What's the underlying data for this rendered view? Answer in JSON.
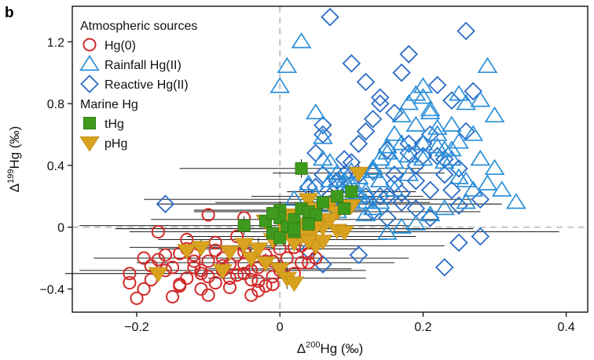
{
  "chart_data": {
    "type": "scatter",
    "panel_label": "b",
    "xlabel": {
      "prefix": "Δ",
      "sup": "200",
      "suffix": "Hg (‰)"
    },
    "ylabel": {
      "prefix": "Δ",
      "sup": "199",
      "suffix": "Hg (‰)"
    },
    "xlim": [
      -0.29,
      0.43
    ],
    "ylim": [
      -0.55,
      1.43
    ],
    "xticks": [
      -0.2,
      0,
      0.2,
      0.4
    ],
    "xtick_labels": [
      "−0.2",
      "0",
      "0.2",
      "0.4"
    ],
    "yticks": [
      -0.4,
      0,
      0.4,
      0.8,
      1.2
    ],
    "ytick_labels": [
      "−0.4",
      "0",
      "0.4",
      "0.8",
      "1.2"
    ],
    "grid": false,
    "reference_lines": "dashed grey lines at x = 0 and y = 0",
    "legend_placement": "top-left",
    "legend_groups": [
      {
        "title": "Atmospheric sources",
        "entries": [
          "Hg(0)",
          "Rainfall Hg(II)",
          "Reactive Hg(II)"
        ]
      },
      {
        "title": "Marine Hg",
        "entries": [
          "tHg",
          "pHg"
        ]
      }
    ],
    "colors": {
      "Hg(0)": "#d32a2a",
      "Rainfall Hg(II)": "#2a8fd8",
      "Reactive Hg(II)": "#2c6cc8",
      "tHg": "#3e9a1d",
      "pHg": "#d9a21e",
      "error_bars": "#000000",
      "reference_lines": "#c8c8c8"
    },
    "series": [
      {
        "name": "Hg(0)",
        "marker": "open-circle",
        "x": [
          -0.21,
          -0.21,
          -0.2,
          -0.19,
          -0.18,
          -0.18,
          -0.17,
          -0.16,
          -0.15,
          -0.14,
          -0.13,
          -0.12,
          -0.12,
          -0.11,
          -0.1,
          -0.1,
          -0.09,
          -0.08,
          -0.08,
          -0.07,
          -0.06,
          -0.05,
          -0.05,
          -0.04,
          -0.03,
          -0.03,
          -0.02,
          -0.01,
          -0.01,
          0.0,
          0.0,
          0.01,
          0.02,
          0.03,
          0.04,
          -0.16,
          -0.14,
          -0.12,
          -0.11,
          -0.09,
          -0.08,
          -0.07,
          -0.06,
          -0.04,
          -0.03,
          -0.02,
          0.03,
          0.05,
          -0.19,
          -0.15,
          -0.13,
          -0.11,
          -0.07,
          -0.05,
          -0.01,
          -0.17,
          -0.13,
          -0.09,
          -0.06,
          0.0,
          0.02,
          -0.14,
          -0.1,
          -0.04,
          -0.02,
          0.04,
          -0.05,
          -0.1
        ],
        "y": [
          -0.36,
          -0.3,
          -0.46,
          -0.4,
          -0.34,
          -0.25,
          -0.21,
          -0.28,
          -0.45,
          -0.38,
          -0.33,
          -0.26,
          -0.18,
          -0.4,
          -0.32,
          -0.22,
          -0.36,
          -0.28,
          -0.2,
          -0.39,
          -0.31,
          -0.24,
          -0.16,
          -0.34,
          -0.41,
          -0.26,
          -0.18,
          -0.32,
          -0.22,
          -0.28,
          -0.14,
          -0.2,
          -0.3,
          -0.23,
          -0.17,
          -0.18,
          -0.17,
          -0.22,
          -0.3,
          -0.15,
          -0.25,
          -0.33,
          -0.18,
          -0.28,
          -0.35,
          -0.22,
          -0.12,
          -0.2,
          -0.2,
          -0.26,
          -0.14,
          -0.28,
          -0.24,
          -0.3,
          -0.37,
          -0.03,
          -0.08,
          -0.1,
          -0.06,
          -0.06,
          -0.13,
          -0.37,
          -0.44,
          -0.44,
          -0.38,
          -0.23,
          0.06,
          0.08
        ]
      },
      {
        "name": "Rainfall Hg(II)",
        "marker": "open-triangle-up",
        "x": [
          0.0,
          0.01,
          0.03,
          0.05,
          0.06,
          0.07,
          0.08,
          0.09,
          0.1,
          0.11,
          0.12,
          0.13,
          0.14,
          0.15,
          0.16,
          0.17,
          0.18,
          0.19,
          0.2,
          0.21,
          0.22,
          0.23,
          0.24,
          0.25,
          0.26,
          0.27,
          0.28,
          0.29,
          0.3,
          0.31,
          0.33,
          0.02,
          0.04,
          0.06,
          0.08,
          0.1,
          0.12,
          0.14,
          0.16,
          0.18,
          0.2,
          0.22,
          0.24,
          0.26,
          0.28,
          0.3,
          0.05,
          0.07,
          0.09,
          0.11,
          0.13,
          0.15,
          0.17,
          0.19,
          0.21,
          0.23,
          0.25,
          0.27,
          0.29,
          0.12,
          0.14,
          0.16,
          0.18,
          0.2,
          0.22,
          0.24,
          0.26,
          0.21,
          0.23,
          0.17,
          0.19,
          0.15,
          0.13,
          0.11,
          0.1,
          0.08,
          0.2,
          0.25,
          0.09,
          0.07
        ],
        "y": [
          0.91,
          1.04,
          1.2,
          0.74,
          0.58,
          0.42,
          0.35,
          0.3,
          0.27,
          0.22,
          0.16,
          0.36,
          0.44,
          0.52,
          0.6,
          0.72,
          0.8,
          0.86,
          0.91,
          0.76,
          0.64,
          0.5,
          0.44,
          0.32,
          0.3,
          0.24,
          0.44,
          0.28,
          0.72,
          0.24,
          0.16,
          0.18,
          0.28,
          0.44,
          0.3,
          0.36,
          0.23,
          0.3,
          0.42,
          0.46,
          0.54,
          0.6,
          0.66,
          0.8,
          0.82,
          0.38,
          0.2,
          0.14,
          0.26,
          0.32,
          0.38,
          0.48,
          0.54,
          0.66,
          0.74,
          0.42,
          0.55,
          0.6,
          1.04,
          0.08,
          0.16,
          0.24,
          0.34,
          0.44,
          0.52,
          0.5,
          0.16,
          0.08,
          0.12,
          0.0,
          0.02,
          -0.04,
          0.12,
          0.2,
          0.16,
          0.1,
          0.84,
          0.86,
          0.22,
          0.3
        ]
      },
      {
        "name": "Reactive Hg(II)",
        "marker": "open-diamond",
        "x": [
          -0.16,
          0.03,
          0.04,
          0.05,
          0.06,
          0.07,
          0.08,
          0.09,
          0.1,
          0.11,
          0.12,
          0.13,
          0.14,
          0.15,
          0.16,
          0.17,
          0.18,
          0.19,
          0.2,
          0.21,
          0.22,
          0.23,
          0.24,
          0.25,
          0.26,
          0.27,
          0.28,
          0.06,
          0.08,
          0.1,
          0.12,
          0.14,
          0.16,
          0.18,
          0.2,
          0.22,
          0.24,
          0.26,
          0.28,
          0.06,
          0.09,
          0.11,
          0.13,
          0.15,
          0.17,
          0.19,
          0.21,
          0.23,
          0.25,
          0.06,
          0.08,
          0.11,
          0.14,
          0.16,
          0.18,
          0.21,
          0.23,
          0.25,
          0.07,
          0.05,
          0.04,
          0.12,
          0.13,
          0.15,
          0.17,
          0.19
        ],
        "y": [
          0.15,
          0.04,
          -0.15,
          0.48,
          0.66,
          1.36,
          0.26,
          0.34,
          0.42,
          0.54,
          0.62,
          0.7,
          0.8,
          0.5,
          0.28,
          0.22,
          1.12,
          0.4,
          0.54,
          0.6,
          0.46,
          0.34,
          0.24,
          -0.1,
          1.27,
          0.88,
          0.18,
          0.6,
          0.3,
          1.06,
          0.94,
          0.84,
          0.74,
          0.54,
          0.46,
          0.92,
          0.82,
          0.62,
          -0.06,
          0.34,
          0.44,
          -0.18,
          0.36,
          0.2,
          1.0,
          0.3,
          0.24,
          -0.26,
          0.14,
          -0.24,
          0.3,
          0.34,
          0.2,
          0.34,
          0.48,
          0.06,
          0.44,
          0.38,
          0.2,
          0.26,
          0.26,
          0.2,
          0.1,
          0.06,
          0.16,
          0.12
        ]
      },
      {
        "name": "tHg",
        "marker": "filled-square",
        "x": [
          0.03,
          -0.05,
          -0.02,
          -0.01,
          0.0,
          0.0,
          0.01,
          0.02,
          0.02,
          0.03,
          0.04,
          0.05,
          0.06,
          0.08,
          0.09,
          0.1,
          -0.01,
          0.0,
          0.02,
          0.04
        ],
        "y": [
          0.38,
          0.01,
          0.04,
          -0.04,
          0.11,
          0.06,
          0.0,
          0.05,
          -0.03,
          0.12,
          0.1,
          0.08,
          0.16,
          0.2,
          0.12,
          0.23,
          0.09,
          -0.07,
          -0.01,
          0.02
        ]
      },
      {
        "name": "pHg",
        "marker": "filled-triangle-down",
        "x": [
          -0.17,
          -0.13,
          -0.11,
          -0.08,
          -0.07,
          -0.05,
          -0.04,
          -0.03,
          -0.02,
          -0.01,
          0.0,
          0.01,
          0.01,
          0.02,
          0.02,
          0.03,
          0.03,
          0.04,
          0.04,
          0.05,
          0.05,
          0.06,
          0.06,
          0.07,
          0.08,
          0.08,
          0.09,
          0.1,
          0.11,
          -0.02,
          0.0,
          0.02,
          0.04,
          0.06,
          0.03,
          0.01,
          0.05,
          0.07
        ],
        "y": [
          -0.3,
          -0.15,
          -0.13,
          -0.28,
          -0.16,
          -0.11,
          -0.2,
          -0.14,
          -0.23,
          -0.08,
          -0.27,
          -0.02,
          -0.33,
          -0.36,
          -0.1,
          0.02,
          -0.06,
          0.18,
          -0.04,
          0.12,
          -0.12,
          0.05,
          -0.09,
          0.15,
          -0.02,
          0.1,
          -0.03,
          0.14,
          0.35,
          0.04,
          -0.04,
          0.08,
          -0.09,
          0.0,
          -0.01,
          0.07,
          0.0,
          0.05
        ]
      }
    ],
    "error_bars": [
      {
        "x": -0.17,
        "y": -0.3,
        "xerr": 0.13,
        "yerr": 0.04
      },
      {
        "x": -0.08,
        "y": -0.28,
        "xerr": 0.2,
        "yerr": 0.05
      },
      {
        "x": -0.05,
        "y": 0.01,
        "xerr": 0.23,
        "yerr": 0.06
      },
      {
        "x": -0.03,
        "y": -0.14,
        "xerr": 0.14,
        "yerr": 0.07
      },
      {
        "x": -0.01,
        "y": -0.08,
        "xerr": 0.16,
        "yerr": 0.06
      },
      {
        "x": 0.0,
        "y": 0.11,
        "xerr": 0.12,
        "yerr": 0.06
      },
      {
        "x": 0.0,
        "y": -0.27,
        "xerr": 0.1,
        "yerr": 0.06
      },
      {
        "x": 0.01,
        "y": -0.33,
        "xerr": 0.11,
        "yerr": 0.07
      },
      {
        "x": 0.02,
        "y": 0.05,
        "xerr": 0.2,
        "yerr": 0.06
      },
      {
        "x": 0.03,
        "y": 0.38,
        "xerr": 0.17,
        "yerr": 0.06
      },
      {
        "x": 0.04,
        "y": 0.18,
        "xerr": 0.23,
        "yerr": 0.07
      },
      {
        "x": 0.06,
        "y": 0.16,
        "xerr": 0.15,
        "yerr": 0.06
      },
      {
        "x": 0.08,
        "y": 0.2,
        "xerr": 0.12,
        "yerr": 0.06
      },
      {
        "x": 0.1,
        "y": 0.23,
        "xerr": 0.09,
        "yerr": 0.06
      },
      {
        "x": 0.11,
        "y": 0.35,
        "xerr": 0.12,
        "yerr": 0.08
      },
      {
        "x": -0.02,
        "y": -0.23,
        "xerr": 0.18,
        "yerr": 0.06
      },
      {
        "x": 0.05,
        "y": -0.12,
        "xerr": 0.18,
        "yerr": 0.06
      },
      {
        "x": 0.03,
        "y": -0.06,
        "xerr": 0.16,
        "yerr": 0.06
      },
      {
        "x": 0.07,
        "y": 0.15,
        "xerr": 0.24,
        "yerr": 0.06
      },
      {
        "x": -0.04,
        "y": -0.2,
        "xerr": 0.22,
        "yerr": 0.06
      },
      {
        "x": 0.08,
        "y": 0.1,
        "xerr": 0.2,
        "yerr": 0.05
      },
      {
        "x": 0.09,
        "y": -0.03,
        "xerr": 0.3,
        "yerr": 0.05
      },
      {
        "x": 0.02,
        "y": -0.01,
        "xerr": 0.25,
        "yerr": 0.05
      },
      {
        "x": -0.11,
        "y": -0.13,
        "xerr": 0.1,
        "yerr": 0.05
      }
    ]
  }
}
